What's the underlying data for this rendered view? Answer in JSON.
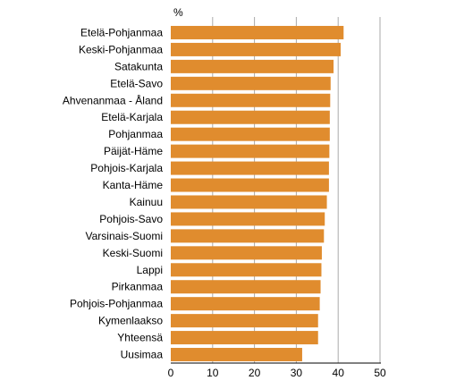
{
  "chart_data": {
    "type": "bar",
    "orientation": "horizontal",
    "unit_label": "%",
    "title": "",
    "xlabel": "",
    "ylabel": "",
    "xlim": [
      0,
      50
    ],
    "x_ticks": [
      0,
      10,
      20,
      30,
      40,
      50
    ],
    "grid": "vertical lines at 10, 20, 30, 40, 50",
    "legend": "none",
    "bar_color": "#E08C2E",
    "categories": [
      "Etelä-Pohjanmaa",
      "Keski-Pohjanmaa",
      "Satakunta",
      "Etelä-Savo",
      "Ahvenanmaa - Åland",
      "Etelä-Karjala",
      "Pohjanmaa",
      "Päijät-Häme",
      "Pohjois-Karjala",
      "Kanta-Häme",
      "Kainuu",
      "Pohjois-Savo",
      "Varsinais-Suomi",
      "Keski-Suomi",
      "Lappi",
      "Pirkanmaa",
      "Pohjois-Pohjanmaa",
      "Kymenlaakso",
      "Yhteensä",
      "Uusimaa"
    ],
    "values": [
      41.3,
      40.6,
      38.9,
      38.2,
      38.1,
      38.0,
      38.0,
      37.9,
      37.8,
      37.8,
      37.3,
      36.8,
      36.6,
      36.1,
      36.0,
      35.8,
      35.6,
      35.2,
      35.2,
      31.4
    ]
  }
}
